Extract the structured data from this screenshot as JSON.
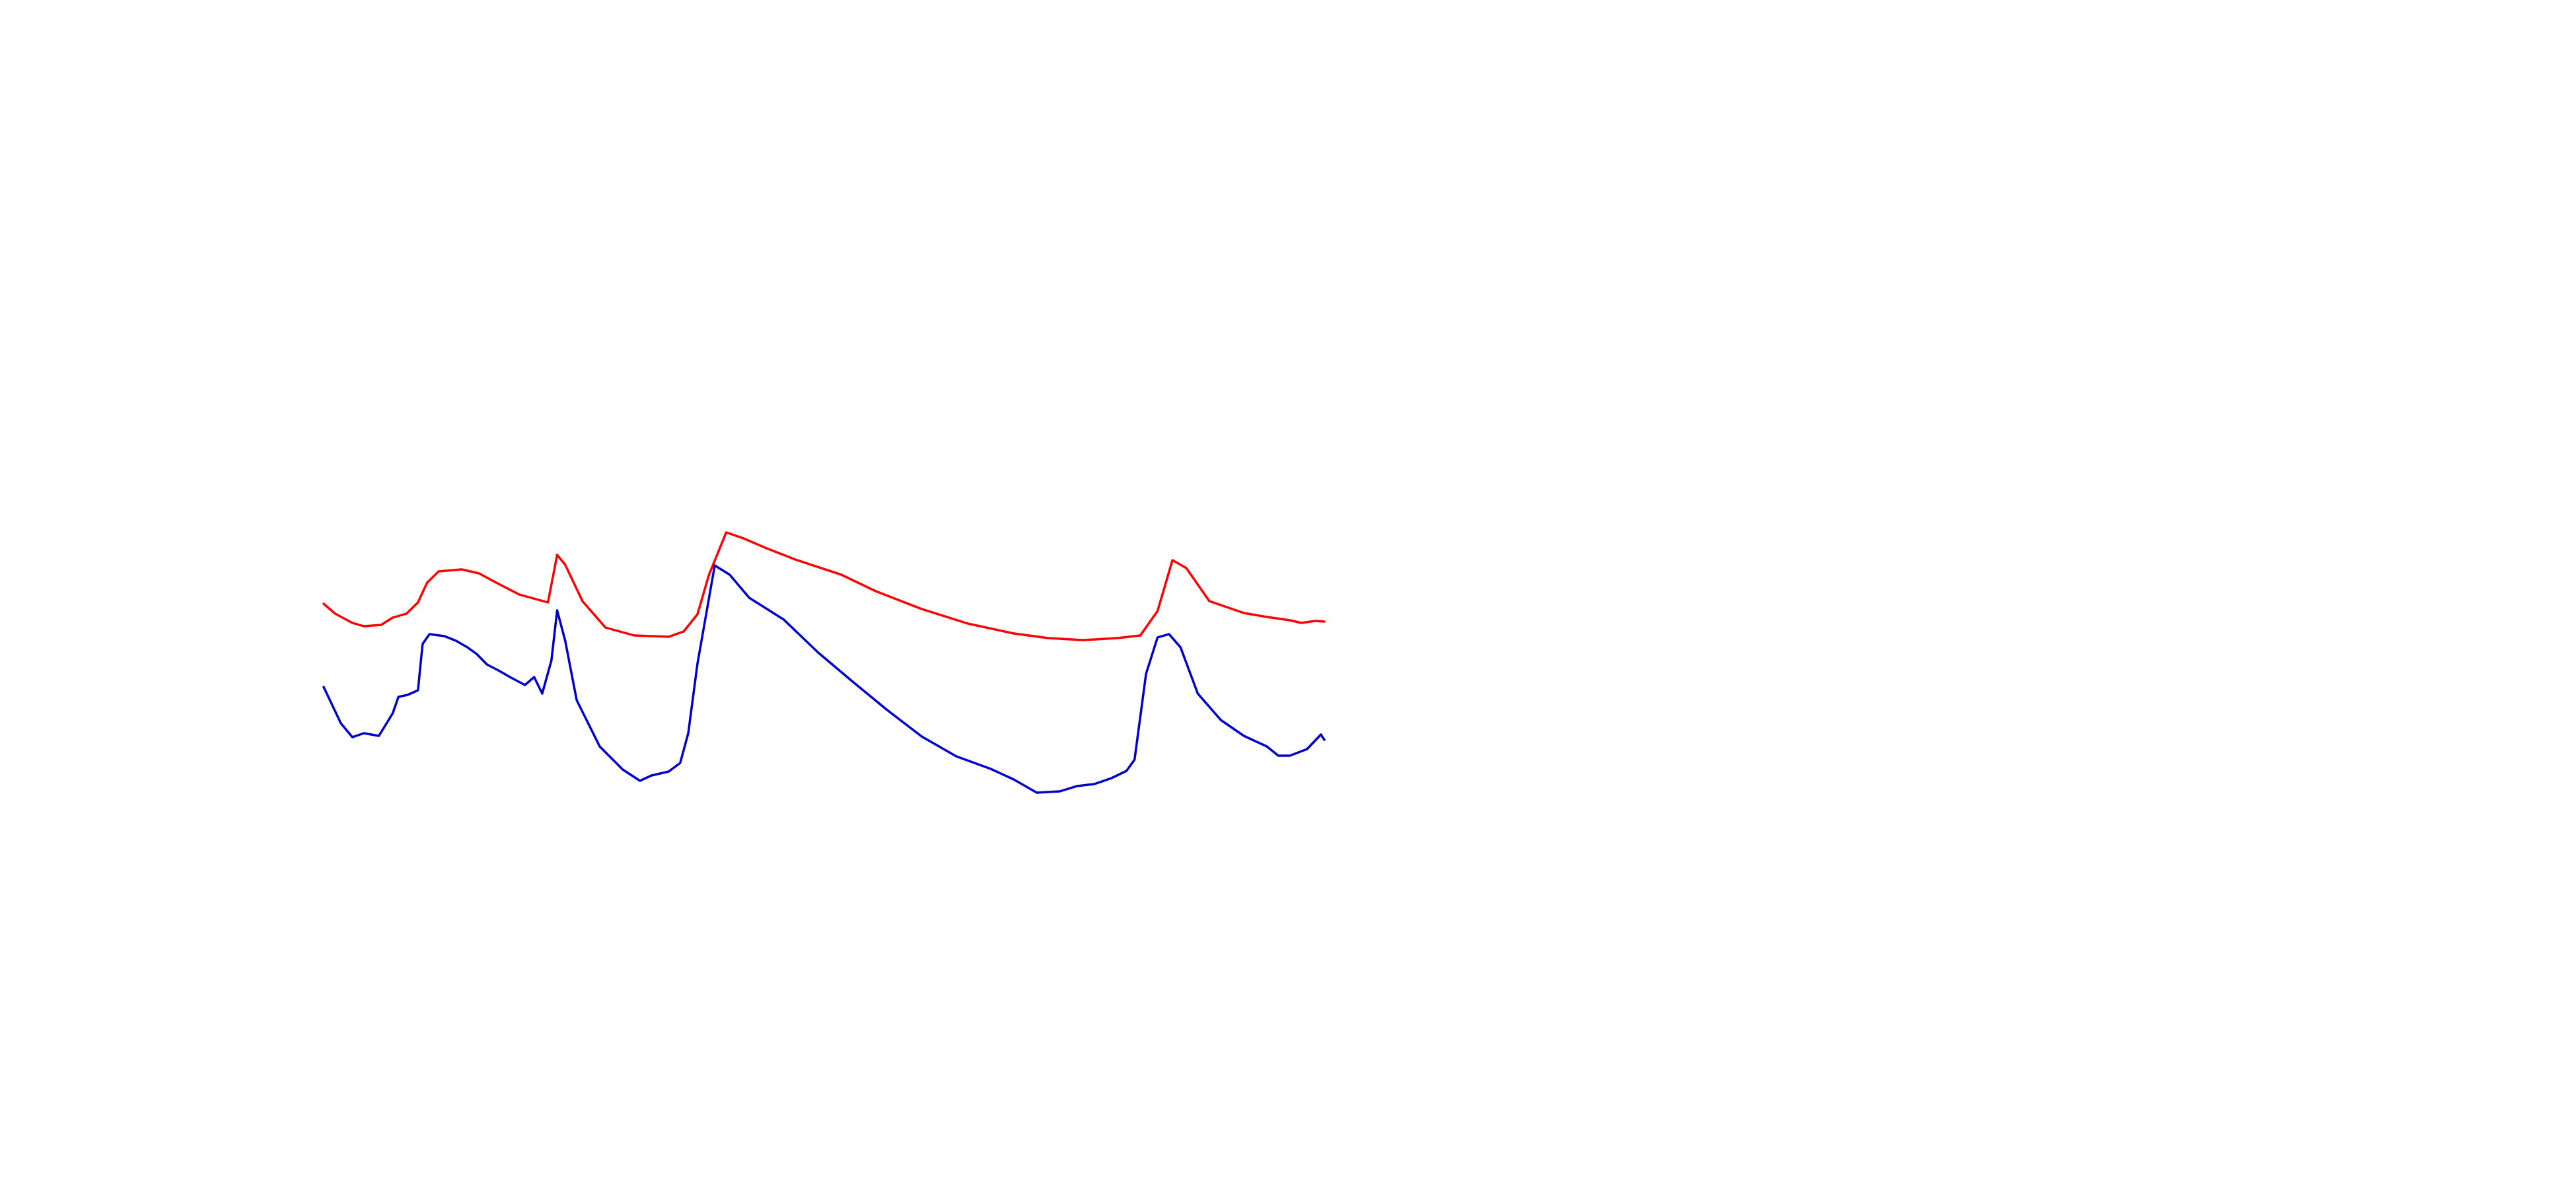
{
  "chart_data": {
    "type": "line",
    "title": "",
    "xlabel": "",
    "ylabel": "",
    "axes_visible": false,
    "grid": false,
    "legend": "none",
    "xlim": [
      0,
      100
    ],
    "ylim": [
      0,
      100
    ],
    "series": [
      {
        "color": "#ff0000",
        "points": [
          [
            0,
            58.6
          ],
          [
            1,
            57.1
          ],
          [
            2.5,
            55.7
          ],
          [
            3.5,
            55.2
          ],
          [
            5,
            55.4
          ],
          [
            6,
            56.5
          ],
          [
            7.2,
            57.1
          ],
          [
            8.2,
            58.8
          ],
          [
            9,
            61.8
          ],
          [
            10,
            63.5
          ],
          [
            12,
            63.8
          ],
          [
            13.5,
            63.2
          ],
          [
            15,
            61.8
          ],
          [
            17,
            60.0
          ],
          [
            19.5,
            58.8
          ],
          [
            20.3,
            66.0
          ],
          [
            21.0,
            64.5
          ],
          [
            22.5,
            59.0
          ],
          [
            24.5,
            55.0
          ],
          [
            27,
            53.8
          ],
          [
            30,
            53.6
          ],
          [
            31.3,
            54.4
          ],
          [
            32.5,
            57.0
          ],
          [
            33.5,
            63.0
          ],
          [
            35.0,
            69.4
          ],
          [
            36.5,
            68.5
          ],
          [
            38.5,
            67.0
          ],
          [
            41,
            65.3
          ],
          [
            45,
            63.0
          ],
          [
            48,
            60.5
          ],
          [
            52,
            57.8
          ],
          [
            56,
            55.6
          ],
          [
            60,
            54.1
          ],
          [
            63,
            53.4
          ],
          [
            66,
            53.1
          ],
          [
            69,
            53.4
          ],
          [
            71,
            53.8
          ],
          [
            72.5,
            57.5
          ],
          [
            73.8,
            65.2
          ],
          [
            75,
            64.0
          ],
          [
            77,
            59.0
          ],
          [
            80,
            57.2
          ],
          [
            82,
            56.6
          ],
          [
            84,
            56.1
          ],
          [
            85,
            55.7
          ],
          [
            86.2,
            56.0
          ],
          [
            87,
            55.9
          ]
        ]
      },
      {
        "color": "#0000cc",
        "points": [
          [
            0,
            46.0
          ],
          [
            1.5,
            40.5
          ],
          [
            2.5,
            38.4
          ],
          [
            3.5,
            39.0
          ],
          [
            4.8,
            38.6
          ],
          [
            6,
            42.0
          ],
          [
            6.5,
            44.5
          ],
          [
            7.3,
            44.8
          ],
          [
            8.2,
            45.5
          ],
          [
            8.6,
            52.5
          ],
          [
            9.2,
            54.0
          ],
          [
            10.5,
            53.7
          ],
          [
            11.5,
            53.0
          ],
          [
            12.5,
            52.0
          ],
          [
            13.3,
            51.0
          ],
          [
            14.2,
            49.4
          ],
          [
            15.2,
            48.5
          ],
          [
            16.2,
            47.5
          ],
          [
            17.5,
            46.3
          ],
          [
            18.3,
            47.5
          ],
          [
            19.0,
            45.0
          ],
          [
            19.8,
            50.0
          ],
          [
            20.3,
            57.6
          ],
          [
            21,
            53.0
          ],
          [
            22,
            44.0
          ],
          [
            24,
            37.0
          ],
          [
            26,
            33.5
          ],
          [
            27.5,
            31.8
          ],
          [
            28.5,
            32.6
          ],
          [
            30,
            33.2
          ],
          [
            31,
            34.5
          ],
          [
            31.7,
            39.0
          ],
          [
            32.5,
            49.5
          ],
          [
            34.0,
            64.4
          ],
          [
            35.3,
            63.0
          ],
          [
            37,
            59.5
          ],
          [
            40,
            56.2
          ],
          [
            43,
            51.2
          ],
          [
            46,
            46.8
          ],
          [
            49,
            42.5
          ],
          [
            52,
            38.5
          ],
          [
            55,
            35.5
          ],
          [
            58,
            33.6
          ],
          [
            60,
            32.0
          ],
          [
            62,
            30.0
          ],
          [
            64,
            30.2
          ],
          [
            65.5,
            31.0
          ],
          [
            67,
            31.3
          ],
          [
            68.5,
            32.2
          ],
          [
            69.8,
            33.3
          ],
          [
            70.5,
            35.0
          ],
          [
            71.5,
            48.0
          ],
          [
            72.5,
            53.5
          ],
          [
            73.5,
            54.0
          ],
          [
            74.5,
            52.0
          ],
          [
            76,
            45.0
          ],
          [
            78,
            41.0
          ],
          [
            80,
            38.6
          ],
          [
            82,
            37.0
          ],
          [
            83,
            35.6
          ],
          [
            84,
            35.6
          ],
          [
            85.5,
            36.6
          ],
          [
            86.7,
            38.8
          ],
          [
            87,
            38.0
          ]
        ]
      }
    ]
  }
}
